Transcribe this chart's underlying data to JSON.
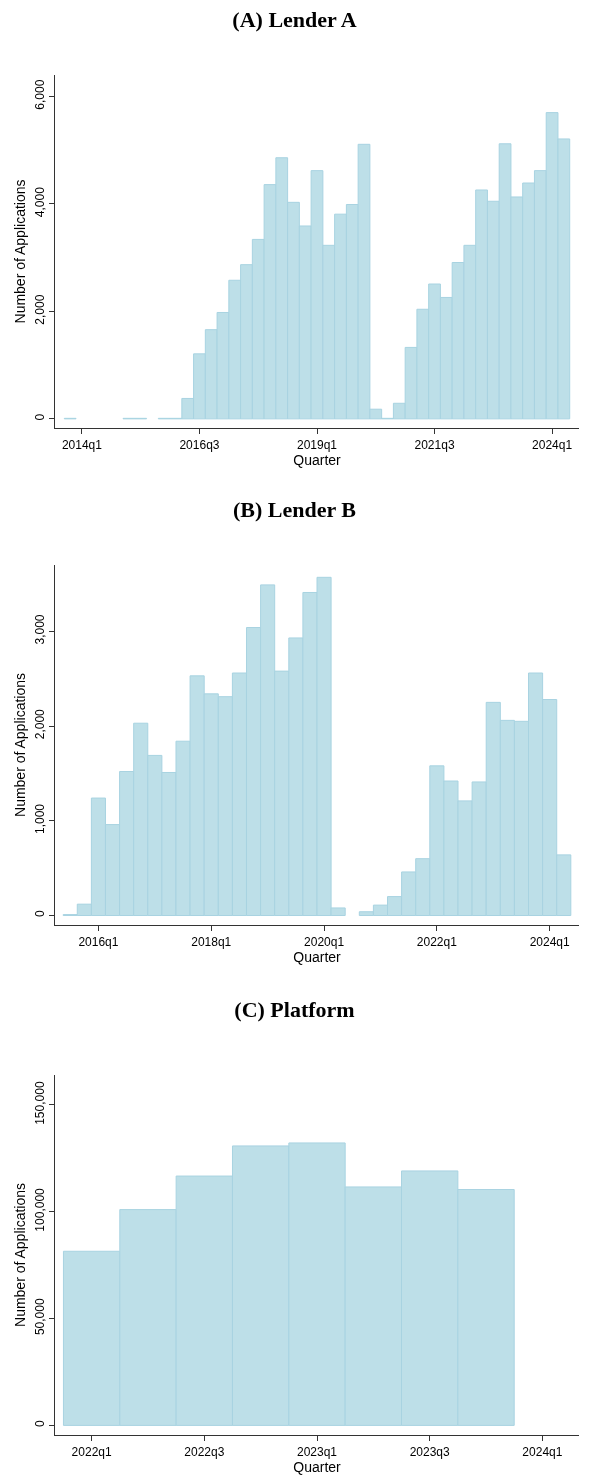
{
  "chart_data": [
    {
      "type": "bar",
      "title": "(A) Lender A",
      "xlabel": "Quarter",
      "ylabel": "Number of Applications",
      "color": "#bddfe8",
      "categories": [
        null,
        "2014q1",
        null,
        null,
        null,
        null,
        null,
        null,
        null,
        null,
        null,
        "2016q3",
        null,
        null,
        null,
        null,
        null,
        null,
        null,
        null,
        null,
        "2019q1",
        null,
        null,
        null,
        null,
        null,
        null,
        null,
        null,
        null,
        "2021q3",
        null,
        null,
        null,
        null,
        null,
        null,
        null,
        null,
        null,
        "2024q1",
        null
      ],
      "values": [
        10,
        null,
        null,
        null,
        null,
        10,
        10,
        null,
        10,
        10,
        380,
        1210,
        1660,
        1980,
        2580,
        2870,
        3340,
        4360,
        4860,
        4030,
        3590,
        4620,
        3230,
        3810,
        3990,
        5110,
        180,
        10,
        290,
        1330,
        2040,
        2510,
        2260,
        2910,
        3230,
        4260,
        4050,
        5120,
        4130,
        4390,
        4620,
        5700,
        5210
      ],
      "ylim": [
        -170,
        6400
      ],
      "yticks": [
        {
          "value": 0,
          "label": "0"
        },
        {
          "value": 2000,
          "label": "2,000"
        },
        {
          "value": 4000,
          "label": "4,000"
        },
        {
          "value": 6000,
          "label": "6,000"
        }
      ]
    },
    {
      "type": "bar",
      "title": "(B) Lender B",
      "xlabel": "Quarter",
      "ylabel": "Number of Applications",
      "color": "#bddfe8",
      "categories": [
        null,
        null,
        "2016q1",
        null,
        null,
        null,
        null,
        null,
        null,
        null,
        "2018q1",
        null,
        null,
        null,
        null,
        null,
        null,
        null,
        "2020q1",
        null,
        null,
        null,
        null,
        null,
        null,
        null,
        "2022q1",
        null,
        null,
        null,
        null,
        null,
        null,
        null,
        "2024q1",
        null
      ],
      "values": [
        10,
        120,
        1240,
        960,
        1520,
        2030,
        1690,
        1510,
        1840,
        2530,
        2340,
        2310,
        2560,
        3040,
        3490,
        2580,
        2930,
        3410,
        3570,
        80,
        null,
        40,
        110,
        200,
        460,
        600,
        1580,
        1420,
        1210,
        1410,
        2250,
        2060,
        2050,
        2560,
        2280,
        640
      ],
      "ylim": [
        -100,
        3700
      ],
      "yticks": [
        {
          "value": 0,
          "label": "0"
        },
        {
          "value": 1000,
          "label": "1,000"
        },
        {
          "value": 2000,
          "label": "2,000"
        },
        {
          "value": 3000,
          "label": "3,000"
        }
      ]
    },
    {
      "type": "bar",
      "title": "(C) Platform",
      "xlabel": "Quarter",
      "ylabel": "Number of Applications",
      "color": "#bddfe8",
      "categories": [
        "2022q1",
        null,
        "2022q3",
        null,
        "2023q1",
        null,
        "2023q3",
        null,
        "2024q1"
      ],
      "values": [
        81500,
        101000,
        116700,
        130800,
        132200,
        111600,
        119100,
        110400,
        null
      ],
      "ylim": [
        -4500,
        164000
      ],
      "yticks": [
        {
          "value": 0,
          "label": "0"
        },
        {
          "value": 50000,
          "label": "50,000"
        },
        {
          "value": 100000,
          "label": "100,000"
        },
        {
          "value": 150000,
          "label": "150,000"
        }
      ]
    }
  ]
}
